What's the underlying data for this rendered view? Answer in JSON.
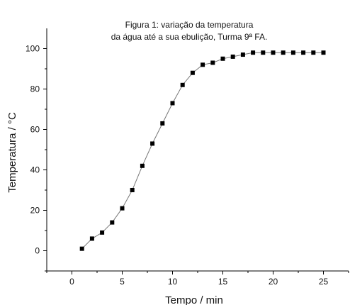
{
  "chart_data": {
    "type": "scatter",
    "title_line1": "Figura 1: variação da temperatura",
    "title_line2": "da água até a sua ebulição, Turma 9ª FA.",
    "xlabel": "Tempo / min",
    "ylabel": "Temperatura / °C",
    "xlim": [
      -2.5,
      27.5
    ],
    "ylim": [
      -10,
      110
    ],
    "xticks": [
      0,
      5,
      10,
      15,
      20,
      25
    ],
    "yticks": [
      0,
      20,
      40,
      60,
      80,
      100
    ],
    "grid": false,
    "x": [
      1,
      2,
      3,
      4,
      5,
      6,
      7,
      8,
      9,
      10,
      11,
      12,
      13,
      14,
      15,
      16,
      17,
      18,
      19,
      20,
      21,
      22,
      23,
      24,
      25
    ],
    "y": [
      1,
      6,
      9,
      14,
      21,
      30,
      42,
      53,
      63,
      73,
      82,
      88,
      92,
      93,
      95,
      96,
      97,
      98,
      98,
      98,
      98,
      98,
      98,
      98,
      98
    ],
    "marker_color": "#000000",
    "line_color": "#777777"
  }
}
